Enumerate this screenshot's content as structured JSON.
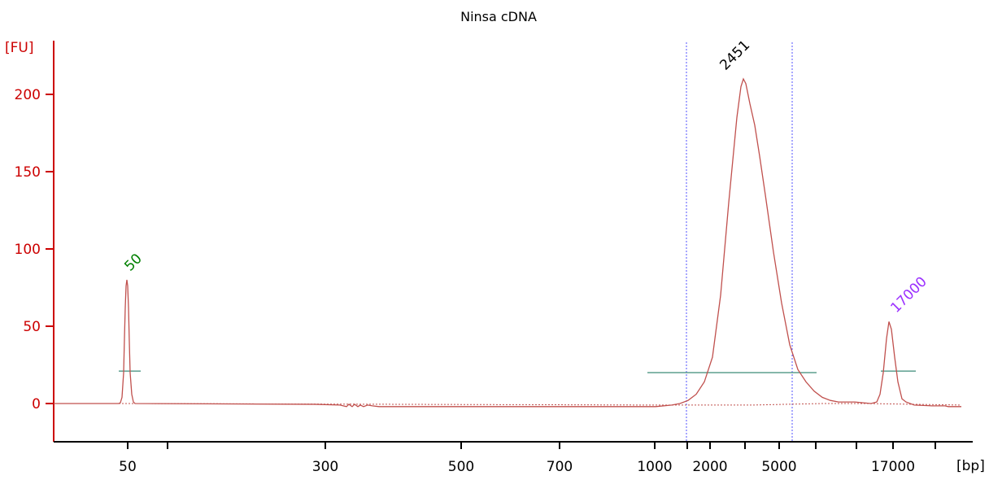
{
  "chart_data": {
    "type": "line",
    "title": "Ninsa cDNA",
    "ylabel": "[FU]",
    "xlabel": "[bp]",
    "ylim": [
      -22,
      233
    ],
    "yticks": [
      0,
      50,
      100,
      150,
      200
    ],
    "xtick_labels": [
      "50",
      "300",
      "500",
      "700",
      "1000",
      "2000",
      "5000",
      "17000"
    ],
    "colors": {
      "trace": "#c0504d",
      "axis": "#cc0000",
      "marker_peak": "#008000",
      "ladder_peak": "#9b30ff",
      "sample_peak": "#000000",
      "region_line": "#3c8c78",
      "region_border": "#5050ff"
    },
    "peaks": [
      {
        "label": "50",
        "color": "#008000",
        "height": 80
      },
      {
        "label": "2451",
        "color": "#000000",
        "height": 210
      },
      {
        "label": "17000",
        "color": "#9b30ff",
        "height": 53
      }
    ],
    "trace": [
      [
        0,
        0
      ],
      [
        80,
        0
      ],
      [
        82,
        0.5
      ],
      [
        84,
        4
      ],
      [
        86,
        20
      ],
      [
        87,
        42
      ],
      [
        88,
        62
      ],
      [
        89,
        76
      ],
      [
        90,
        80
      ],
      [
        91,
        76
      ],
      [
        92,
        62
      ],
      [
        93,
        40
      ],
      [
        94,
        20
      ],
      [
        96,
        6
      ],
      [
        98,
        1
      ],
      [
        100,
        0
      ],
      [
        320,
        -0.5
      ],
      [
        352,
        -1
      ],
      [
        360,
        -2
      ],
      [
        363,
        -0.5
      ],
      [
        367,
        -2
      ],
      [
        370,
        -0.5
      ],
      [
        374,
        -2
      ],
      [
        377,
        -1
      ],
      [
        381,
        -2
      ],
      [
        386,
        -1
      ],
      [
        392,
        -1.5
      ],
      [
        400,
        -2
      ],
      [
        740,
        -2
      ],
      [
        760,
        -1
      ],
      [
        770,
        0
      ],
      [
        780,
        2
      ],
      [
        790,
        6
      ],
      [
        800,
        14
      ],
      [
        810,
        30
      ],
      [
        820,
        70
      ],
      [
        830,
        130
      ],
      [
        840,
        185
      ],
      [
        845,
        205
      ],
      [
        848,
        210
      ],
      [
        851,
        207
      ],
      [
        856,
        194
      ],
      [
        862,
        180
      ],
      [
        868,
        160
      ],
      [
        875,
        135
      ],
      [
        885,
        98
      ],
      [
        895,
        65
      ],
      [
        905,
        38
      ],
      [
        915,
        22
      ],
      [
        925,
        14
      ],
      [
        935,
        8
      ],
      [
        945,
        4
      ],
      [
        955,
        2
      ],
      [
        965,
        1
      ],
      [
        985,
        1
      ],
      [
        1005,
        0
      ],
      [
        1012,
        1
      ],
      [
        1016,
        6
      ],
      [
        1020,
        20
      ],
      [
        1024,
        42
      ],
      [
        1027,
        53
      ],
      [
        1030,
        48
      ],
      [
        1034,
        30
      ],
      [
        1038,
        14
      ],
      [
        1043,
        3
      ],
      [
        1048,
        1
      ],
      [
        1058,
        -1
      ],
      [
        1080,
        -1.5
      ],
      [
        1096,
        -1.5
      ],
      [
        1100,
        -2
      ],
      [
        1116,
        -2
      ]
    ],
    "baseline": [
      [
        0,
        0
      ],
      [
        80,
        0
      ],
      [
        100,
        0
      ],
      [
        740,
        -1
      ],
      [
        800,
        -1
      ],
      [
        860,
        -1
      ],
      [
        900,
        -0.5
      ],
      [
        945,
        0
      ],
      [
        1000,
        0
      ],
      [
        1116,
        -1
      ]
    ],
    "region_lines": [
      {
        "x1": 76,
        "x2": 103,
        "y": 21
      },
      {
        "x1": 726,
        "x2": 934,
        "y": 20
      },
      {
        "x1": 1013,
        "x2": 1056,
        "y": 21
      }
    ],
    "region_borders": [
      774,
      904
    ]
  }
}
